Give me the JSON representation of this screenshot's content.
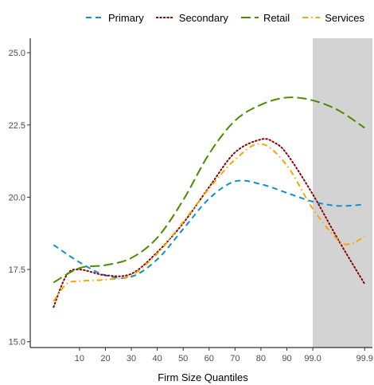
{
  "chart_data": {
    "type": "line",
    "title": "",
    "xlabel": "Firm Size Quantiles",
    "ylabel": "",
    "x_ticks": [
      "10",
      "20",
      "30",
      "40",
      "50",
      "60",
      "70",
      "80",
      "90",
      "99.0",
      "99.9"
    ],
    "x_tick_positions": [
      1,
      2,
      3,
      4,
      5,
      6,
      7,
      8,
      9,
      10,
      12
    ],
    "xlim": [
      -0.9,
      12.3
    ],
    "ylim": [
      14.8,
      25.5
    ],
    "y_ticks": [
      "15.0",
      "17.5",
      "20.0",
      "22.5",
      "25.0"
    ],
    "y_tick_values": [
      15.0,
      17.5,
      20.0,
      22.5,
      25.0
    ],
    "shaded_region": {
      "x_from": 10,
      "x_to": 12.3,
      "color": "#d3d3d3"
    },
    "grid": false,
    "legend_position": "top",
    "series": [
      {
        "name": "Primary",
        "color": "#0f8fd4",
        "dash": "dashed",
        "x": [
          0,
          1,
          2,
          3,
          4,
          5,
          6,
          7,
          8,
          9,
          10,
          11,
          12
        ],
        "y": [
          18.35,
          17.75,
          17.3,
          17.25,
          17.85,
          18.9,
          19.95,
          20.55,
          20.45,
          20.15,
          19.85,
          19.7,
          19.75
        ]
      },
      {
        "name": "Secondary",
        "color": "#8b0000",
        "dash": "dotted",
        "x": [
          0,
          0.5,
          1,
          2,
          3,
          4,
          5,
          6,
          7,
          8,
          8.5,
          9,
          10,
          11,
          12
        ],
        "y": [
          16.2,
          17.3,
          17.5,
          17.3,
          17.35,
          18.1,
          19.1,
          20.35,
          21.55,
          22.0,
          21.9,
          21.5,
          20.1,
          18.5,
          17.0
        ]
      },
      {
        "name": "Retail",
        "color": "#4e8a00",
        "dash": "longdash",
        "x": [
          0,
          1,
          2,
          3,
          4,
          5,
          6,
          7,
          8,
          9,
          10,
          11,
          12
        ],
        "y": [
          17.05,
          17.55,
          17.65,
          17.9,
          18.6,
          19.9,
          21.5,
          22.65,
          23.2,
          23.45,
          23.35,
          23.0,
          22.4
        ]
      },
      {
        "name": "Services",
        "color": "#f5a700",
        "dash": "dashdot",
        "x": [
          0,
          0.5,
          1,
          2,
          3,
          4,
          5,
          6,
          7,
          8,
          9,
          10,
          11,
          11.5,
          12
        ],
        "y": [
          16.4,
          17.0,
          17.1,
          17.15,
          17.3,
          18.05,
          19.15,
          20.3,
          21.3,
          21.85,
          21.1,
          19.6,
          18.5,
          18.4,
          18.65
        ]
      }
    ]
  }
}
